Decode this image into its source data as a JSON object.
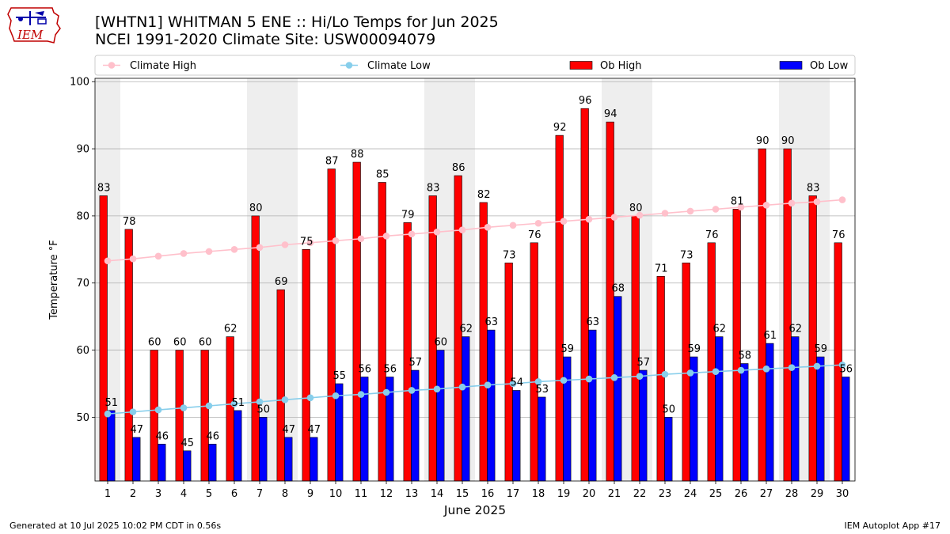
{
  "header": {
    "title_line1": "[WHTN1] WHITMAN 5 ENE :: Hi/Lo Temps for Jun 2025",
    "title_line2": "NCEI 1991-2020 Climate Site: USW00094079",
    "logo_text": "IEM"
  },
  "footer": {
    "generated": "Generated at 10 Jul 2025 10:02 PM CDT in 0.56s",
    "app": "IEM Autoplot App #17"
  },
  "colors": {
    "climate_high": "#ffc0cb",
    "climate_low": "#87ceeb",
    "ob_high": "#ff0000",
    "ob_low": "#0000ff",
    "weekend_shade": "#eeeeee",
    "grid": "#b0b0b0"
  },
  "chart_data": {
    "type": "bar",
    "xlabel": "June 2025",
    "ylabel": "Temperature °F",
    "ylim": [
      40.5,
      100.5
    ],
    "yticks": [
      50,
      60,
      70,
      80,
      90,
      100
    ],
    "grid": "horizontal",
    "legend": [
      "Climate High",
      "Climate Low",
      "Ob High",
      "Ob Low"
    ],
    "legend_position": "top",
    "categories": [
      "1",
      "2",
      "3",
      "4",
      "5",
      "6",
      "7",
      "8",
      "9",
      "10",
      "11",
      "12",
      "13",
      "14",
      "15",
      "16",
      "17",
      "18",
      "19",
      "20",
      "21",
      "22",
      "23",
      "24",
      "25",
      "26",
      "27",
      "28",
      "29",
      "30"
    ],
    "weekend_days": [
      1,
      7,
      8,
      14,
      15,
      21,
      22,
      28,
      29
    ],
    "series": [
      {
        "name": "Ob High",
        "kind": "bar",
        "values": [
          83,
          78,
          60,
          60,
          60,
          62,
          80,
          69,
          75,
          87,
          88,
          85,
          79,
          83,
          86,
          82,
          73,
          76,
          92,
          96,
          94,
          80,
          71,
          73,
          76,
          81,
          90,
          90,
          83,
          76
        ]
      },
      {
        "name": "Ob Low",
        "kind": "bar",
        "values": [
          51,
          47,
          46,
          45,
          46,
          51,
          50,
          47,
          47,
          55,
          56,
          56,
          57,
          60,
          62,
          63,
          54,
          53,
          59,
          63,
          68,
          57,
          50,
          59,
          62,
          58,
          61,
          62,
          59,
          56
        ]
      },
      {
        "name": "Climate High",
        "kind": "line",
        "values": [
          73.3,
          73.6,
          74.0,
          74.4,
          74.7,
          75.0,
          75.3,
          75.7,
          76.0,
          76.3,
          76.6,
          77.0,
          77.3,
          77.6,
          77.9,
          78.3,
          78.6,
          78.9,
          79.2,
          79.5,
          79.8,
          80.1,
          80.4,
          80.7,
          81.0,
          81.3,
          81.6,
          81.9,
          82.1,
          82.4
        ]
      },
      {
        "name": "Climate Low",
        "kind": "line",
        "values": [
          50.5,
          50.8,
          51.1,
          51.4,
          51.7,
          52.0,
          52.3,
          52.6,
          52.9,
          53.2,
          53.4,
          53.7,
          54.0,
          54.2,
          54.5,
          54.8,
          55.0,
          55.3,
          55.5,
          55.7,
          55.9,
          56.1,
          56.4,
          56.6,
          56.8,
          57.0,
          57.2,
          57.4,
          57.6,
          57.8
        ]
      }
    ]
  }
}
